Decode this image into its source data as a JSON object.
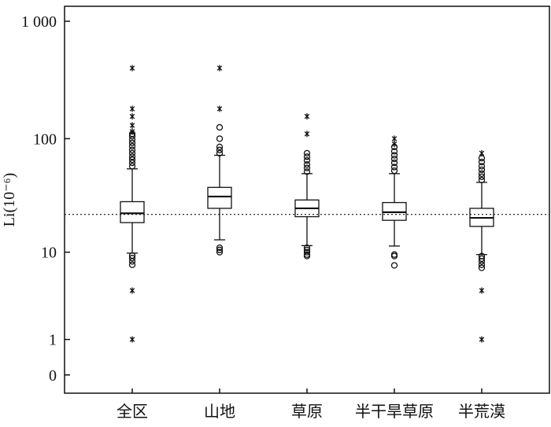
{
  "chart_data": {
    "type": "box",
    "ylabel": "Li(10⁻⁶)",
    "yscale": "log1p",
    "ylim": [
      -0.3,
      1340
    ],
    "yticks": [
      0,
      1,
      10,
      100,
      {
        "value": 1000,
        "label": "1 000"
      }
    ],
    "reference_line": 22,
    "categories": [
      "全区",
      "山地",
      "草原",
      "半干旱草原",
      "半荒漠"
    ],
    "boxes": [
      {
        "whislo": 9.8,
        "q1": 18.6,
        "median": 22.5,
        "q3": 28.5,
        "whishi": 55,
        "circles": [
          58,
          62,
          66,
          70,
          75,
          80,
          86,
          92,
          98,
          105,
          110,
          9.3,
          8.8,
          8.2,
          7.6
        ],
        "stars": [
          400,
          180,
          155,
          130,
          115,
          4.2,
          1
        ]
      },
      {
        "whislo": 13,
        "q1": 24.9,
        "median": 31.6,
        "q3": 38,
        "whishi": 72,
        "circles": [
          75,
          80,
          85,
          100,
          125,
          11,
          10.5,
          10
        ],
        "stars": [
          400,
          180
        ]
      },
      {
        "whislo": 11.5,
        "q1": 21,
        "median": 24.9,
        "q3": 29.5,
        "whishi": 50,
        "circles": [
          52,
          56,
          60,
          65,
          70,
          75,
          11,
          10.5,
          10,
          9.5,
          9.2
        ],
        "stars": [
          155,
          110
        ]
      },
      {
        "whislo": 11.4,
        "q1": 19.5,
        "median": 23,
        "q3": 28,
        "whishi": 50,
        "circles": [
          53,
          57,
          62,
          67,
          72,
          78,
          85,
          9.5,
          9.2,
          7.5
        ],
        "stars": [
          100,
          90
        ]
      },
      {
        "whislo": 9.5,
        "q1": 17.2,
        "median": 20.5,
        "q3": 24.9,
        "whishi": 42,
        "circles": [
          44,
          47,
          50,
          54,
          58,
          63,
          68,
          9.2,
          8.7,
          8.2,
          7.6,
          7.1
        ],
        "stars": [
          75,
          4.2,
          1
        ]
      }
    ]
  }
}
